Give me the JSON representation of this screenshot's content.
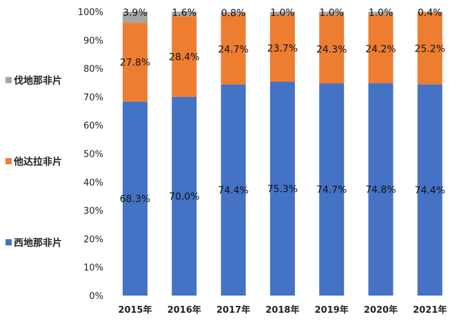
{
  "chart_data": {
    "type": "bar",
    "stacked": true,
    "percent": true,
    "categories": [
      "2015年",
      "2016年",
      "2017年",
      "2018年",
      "2019年",
      "2020年",
      "2021年"
    ],
    "series": [
      {
        "name": "西地那非片",
        "color": "#4472C4",
        "values": [
          68.3,
          70.0,
          74.4,
          75.3,
          74.7,
          74.8,
          74.4
        ],
        "labels": [
          "68.3%",
          "70.0%",
          "74.4%",
          "75.3%",
          "74.7%",
          "74.8%",
          "74.4%"
        ]
      },
      {
        "name": "他达拉非片",
        "color": "#ED7D31",
        "values": [
          27.8,
          28.4,
          24.7,
          23.7,
          24.3,
          24.2,
          25.2
        ],
        "labels": [
          "27.8%",
          "28.4%",
          "24.7%",
          "23.7%",
          "24.3%",
          "24.2%",
          "25.2%"
        ]
      },
      {
        "name": "伐地那非片",
        "color": "#A5A5A5",
        "values": [
          3.9,
          1.6,
          0.8,
          1.0,
          1.0,
          1.0,
          0.4
        ],
        "labels": [
          "3.9%",
          "1.6%",
          "0.8%",
          "1.0%",
          "1.0%",
          "1.0%",
          "0.4%"
        ]
      }
    ],
    "ylim": [
      0,
      100
    ],
    "yticks": [
      "0%",
      "10%",
      "20%",
      "30%",
      "40%",
      "50%",
      "60%",
      "70%",
      "80%",
      "90%",
      "100%"
    ],
    "legend_position": "left",
    "legend_order": [
      "伐地那非片",
      "他达拉非片",
      "西地那非片"
    ],
    "grid": false
  }
}
